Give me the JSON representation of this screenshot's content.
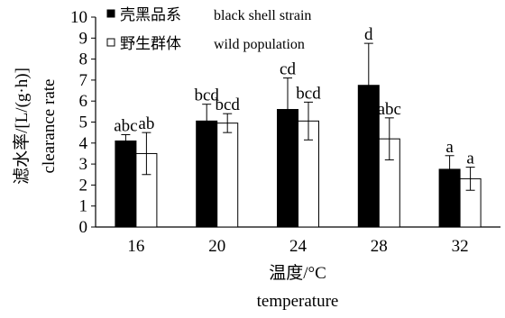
{
  "chart_data": {
    "type": "bar",
    "ylabel_cn": "滤水率/[L/(g·h)]",
    "ylabel_en": "clearance rate",
    "xlabel_cn": "温度/°C",
    "xlabel_en": "temperature",
    "ylim": [
      0,
      10
    ],
    "yticks": [
      "0",
      "1",
      "2",
      "3",
      "4",
      "5",
      "6",
      "7",
      "8",
      "9",
      "10"
    ],
    "categories": [
      "16",
      "20",
      "24",
      "28",
      "32"
    ],
    "series": [
      {
        "name": "壳黑品系 black shell strain",
        "name_cn": "壳黑品系",
        "name_en": "black shell strain",
        "color": "#000000",
        "values": [
          4.1,
          5.05,
          5.6,
          6.75,
          2.75
        ],
        "errors": [
          0.3,
          0.8,
          1.5,
          2.0,
          0.65
        ],
        "labels": [
          "abc",
          "bcd",
          "cd",
          "d",
          "a"
        ]
      },
      {
        "name": "野生群体 wild population",
        "name_cn": "野生群体",
        "name_en": "wild population",
        "color": "#ffffff",
        "values": [
          3.5,
          4.95,
          5.05,
          4.2,
          2.3
        ],
        "errors": [
          1.0,
          0.45,
          0.9,
          1.0,
          0.55
        ],
        "labels": [
          "ab",
          "bcd",
          "bcd",
          "abc",
          "a"
        ]
      }
    ],
    "grid": false,
    "legend_position": "top-left"
  }
}
